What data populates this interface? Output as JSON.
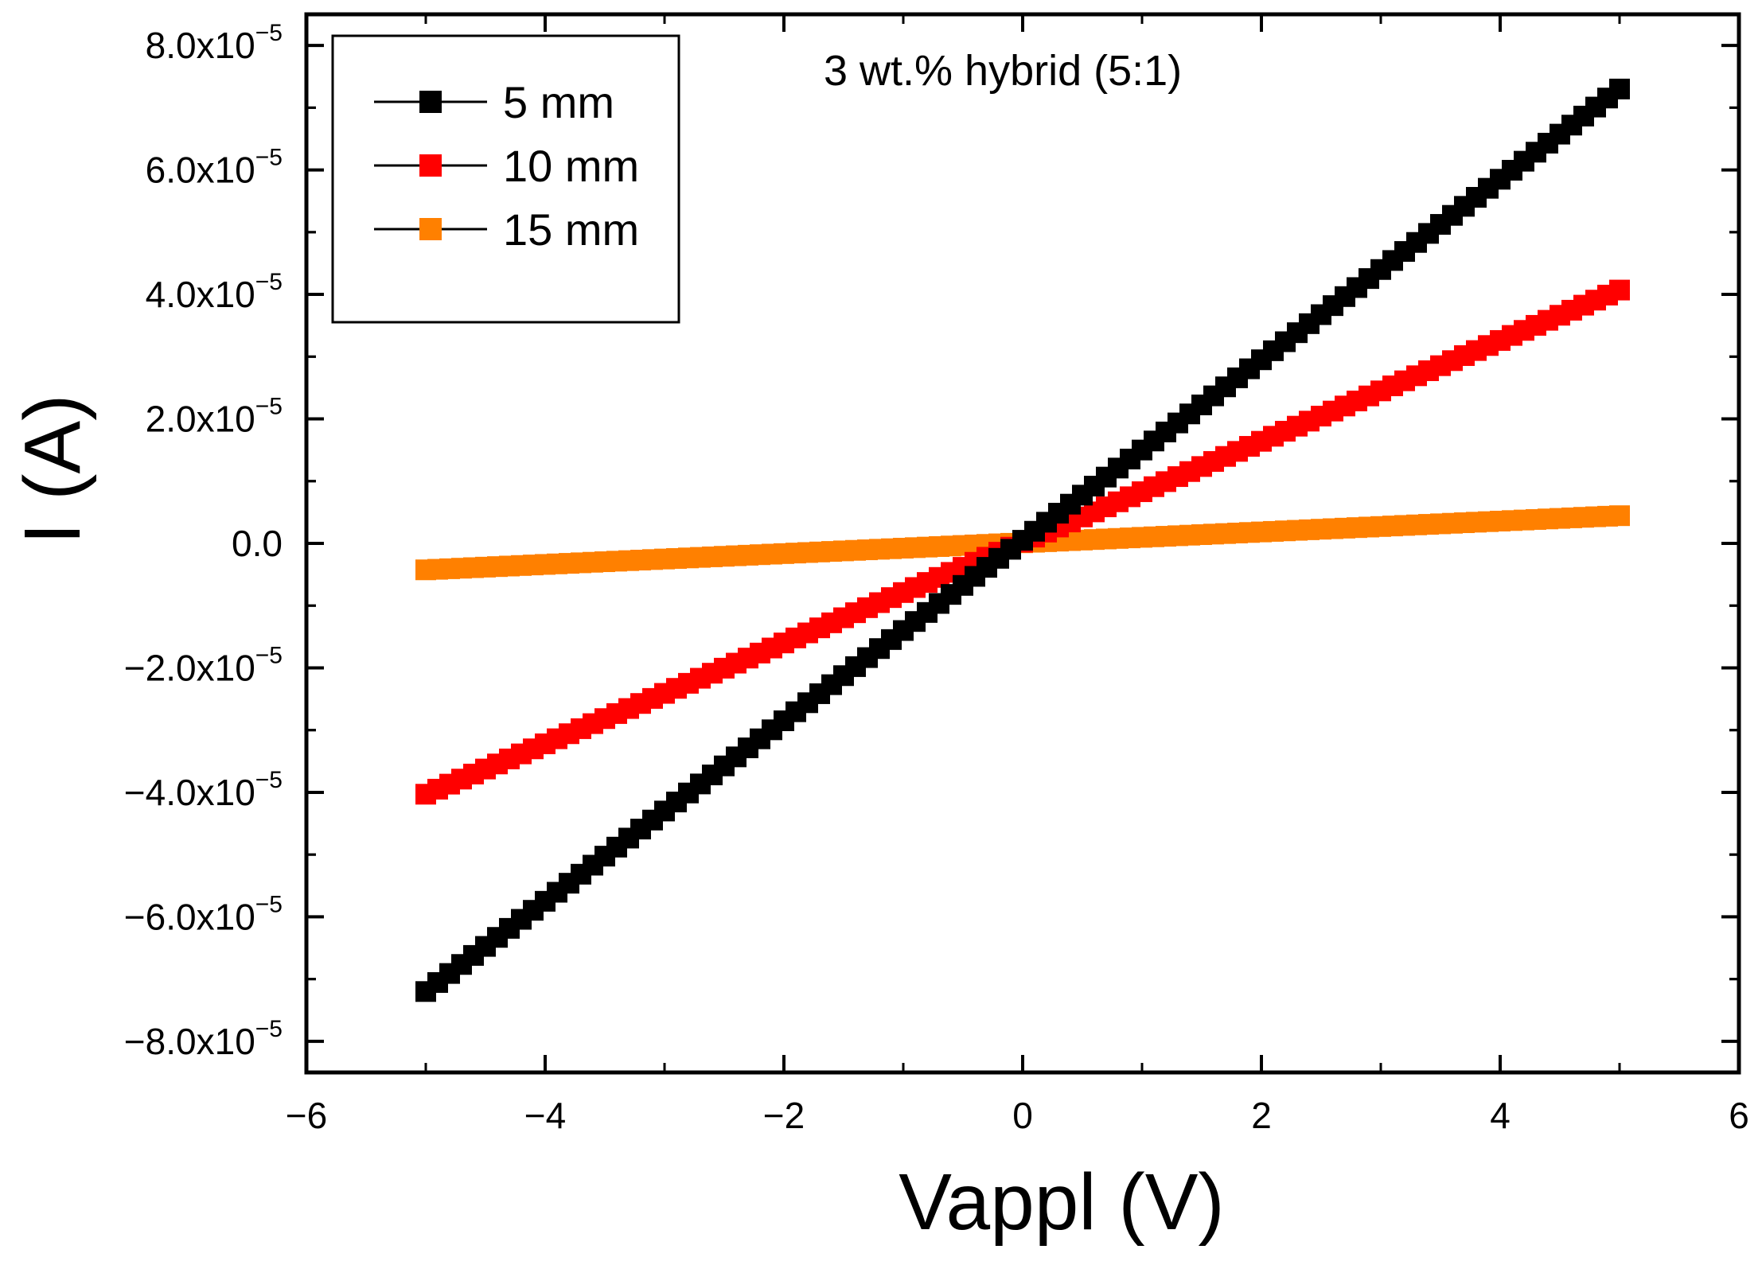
{
  "chart_data": {
    "type": "scatter",
    "title": "",
    "annotation": "3 wt.% hybrid (5:1)",
    "xlabel": "Vappl (V)",
    "ylabel": "I (A)",
    "xlim": [
      -6,
      6
    ],
    "ylim": [
      -8.5e-05,
      8.5e-05
    ],
    "x_ticks": [
      -6,
      -4,
      -2,
      0,
      2,
      4,
      6
    ],
    "x_tick_labels": [
      "−6",
      "−4",
      "−2",
      "0",
      "2",
      "4",
      "6"
    ],
    "y_ticks": [
      {
        "value": -8e-05,
        "mantissa": "−8.0x10",
        "exponent": "−5"
      },
      {
        "value": -6e-05,
        "mantissa": "−6.0x10",
        "exponent": "−5"
      },
      {
        "value": -4e-05,
        "mantissa": "−4.0x10",
        "exponent": "−5"
      },
      {
        "value": -2e-05,
        "mantissa": "−2.0x10",
        "exponent": "−5"
      },
      {
        "value": 0,
        "mantissa": "0.0",
        "exponent": ""
      },
      {
        "value": 2e-05,
        "mantissa": "2.0x10",
        "exponent": "−5"
      },
      {
        "value": 4e-05,
        "mantissa": "4.0x10",
        "exponent": "−5"
      },
      {
        "value": 6e-05,
        "mantissa": "6.0x10",
        "exponent": "−5"
      },
      {
        "value": 8e-05,
        "mantissa": "8.0x10",
        "exponent": "−5"
      }
    ],
    "legend_position": "top-left",
    "grid": false,
    "x_range": {
      "start": -5,
      "end": 5,
      "step": 0.1
    },
    "series": [
      {
        "name": "5 mm",
        "color": "#000000",
        "slope": 1.45e-05,
        "intercept": 5e-07
      },
      {
        "name": "10 mm",
        "color": "#ff0000",
        "slope": 8.1e-06,
        "intercept": 2e-07
      },
      {
        "name": "15 mm",
        "color": "#ff8000",
        "slope": 8.7e-07,
        "intercept": 1e-07
      }
    ]
  }
}
